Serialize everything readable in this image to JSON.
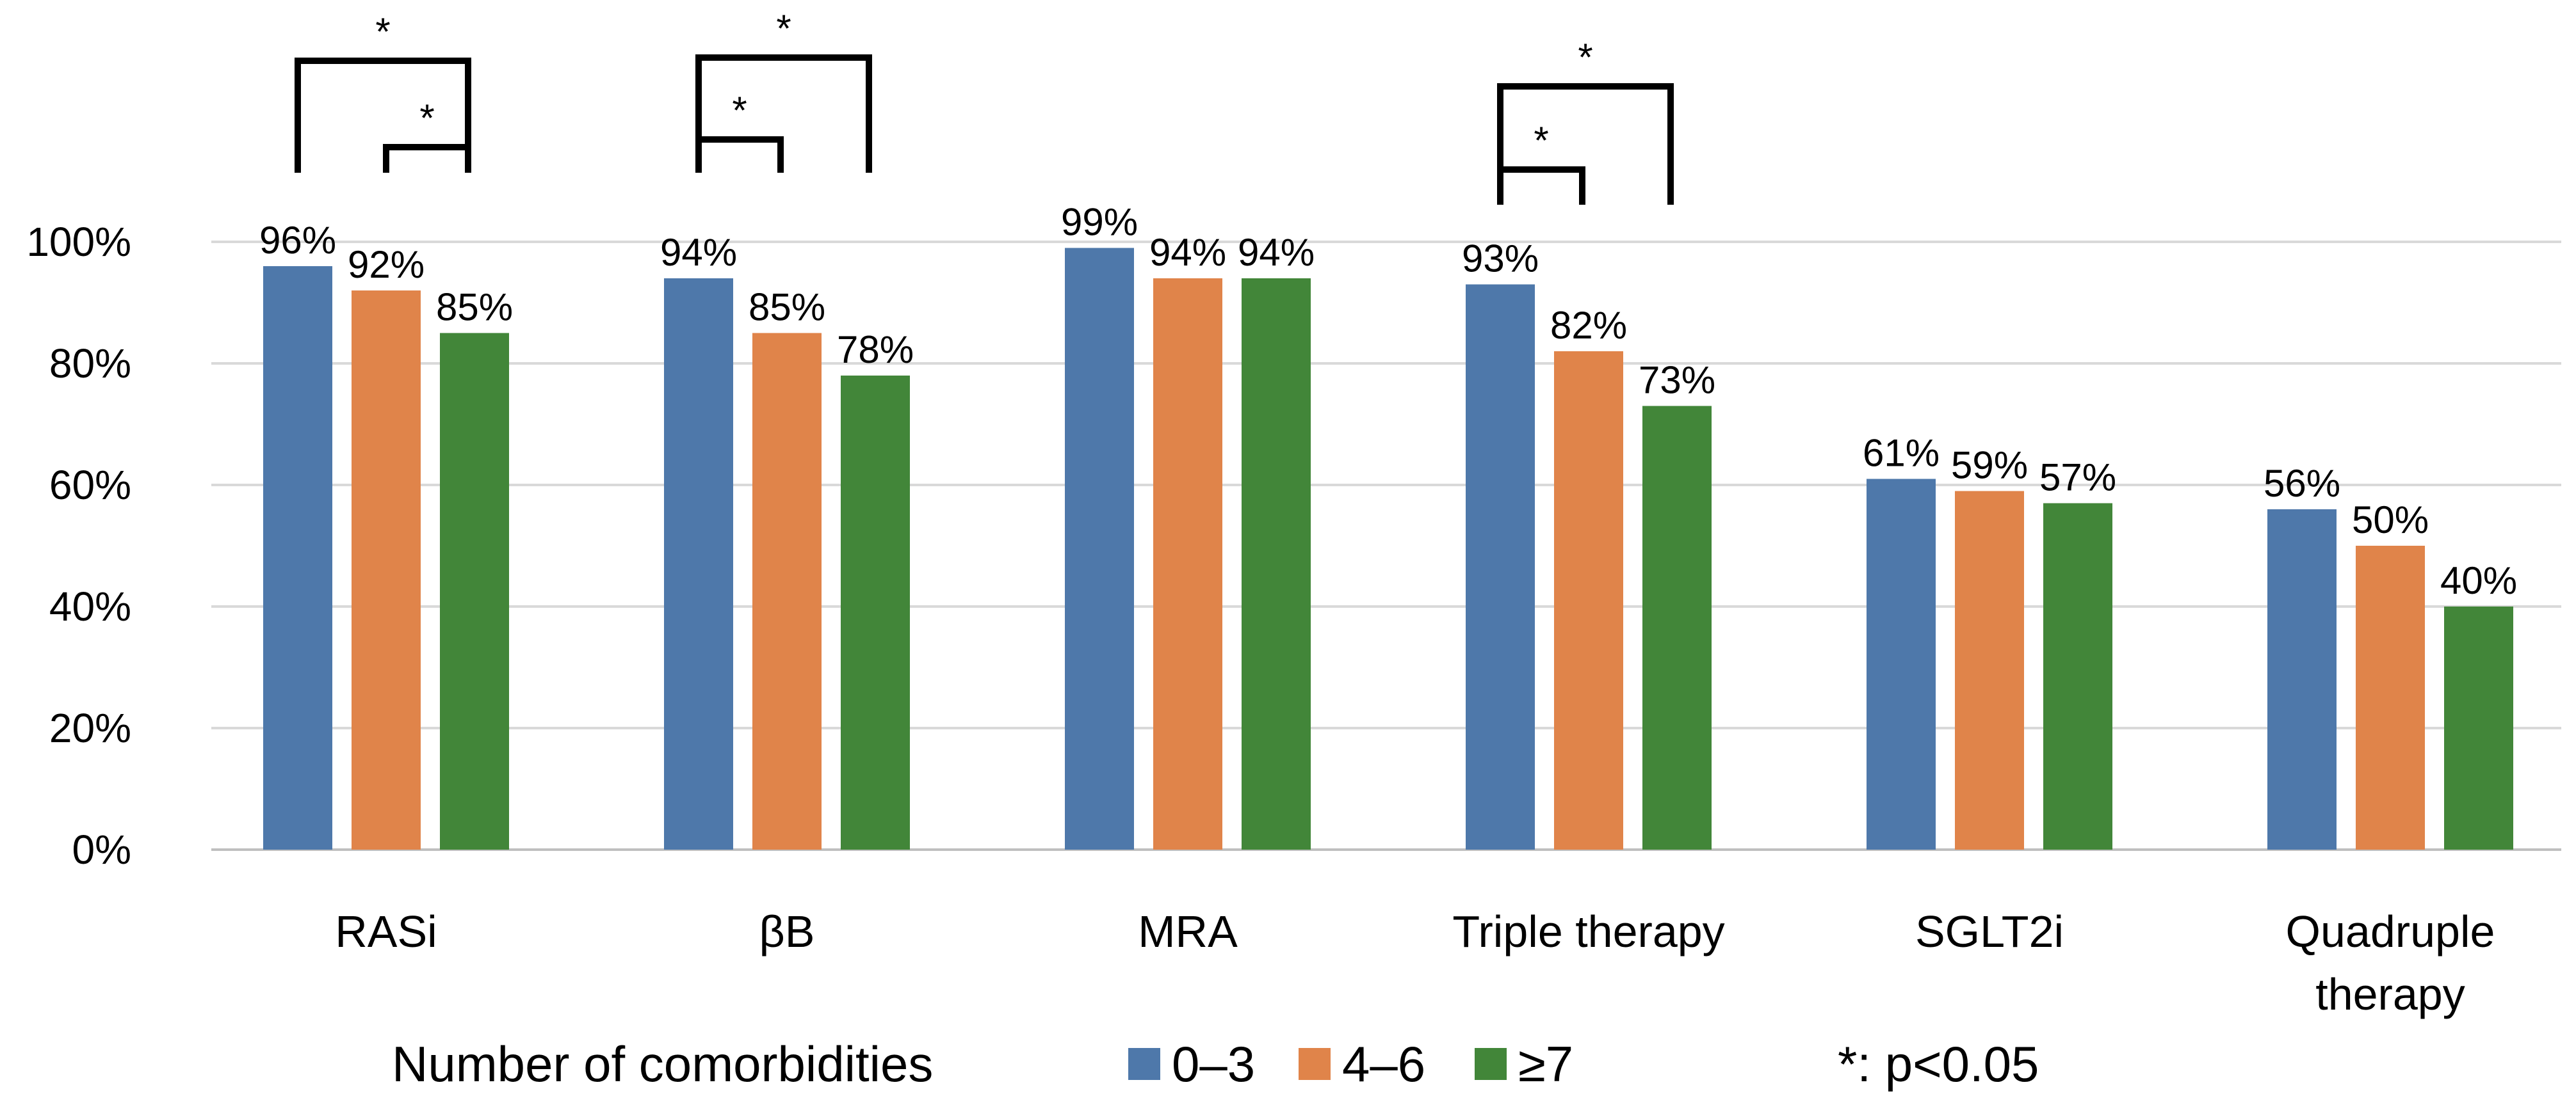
{
  "chart_data": {
    "type": "bar",
    "title": "",
    "xlabel": "",
    "ylabel": "",
    "ylim": [
      0,
      100
    ],
    "yticks": [
      "0%",
      "20%",
      "40%",
      "60%",
      "80%",
      "100%"
    ],
    "ytick_values": [
      0,
      20,
      40,
      60,
      80,
      100
    ],
    "grid": true,
    "categories": [
      [
        "RASi"
      ],
      [
        "βB"
      ],
      [
        "MRA"
      ],
      [
        "Triple therapy"
      ],
      [
        "SGLT2i"
      ],
      [
        "Quadruple",
        "therapy"
      ]
    ],
    "series": [
      {
        "name": "0–3",
        "color": "#4E78AA",
        "values": [
          96,
          94,
          99,
          93,
          61,
          56
        ],
        "labels": [
          "96%",
          "94%",
          "99%",
          "93%",
          "61%",
          "56%"
        ]
      },
      {
        "name": "4–6",
        "color": "#E0844A",
        "values": [
          92,
          85,
          94,
          82,
          59,
          50
        ],
        "labels": [
          "92%",
          "85%",
          "94%",
          "82%",
          "59%",
          "50%"
        ]
      },
      {
        "name": "≥7",
        "color": "#428639",
        "values": [
          85,
          78,
          94,
          73,
          57,
          40
        ],
        "labels": [
          "85%",
          "78%",
          "94%",
          "73%",
          "57%",
          "40%"
        ]
      }
    ],
    "legend": {
      "title": "Number of comorbidities",
      "placement": "bottom",
      "note": "*: p<0.05"
    },
    "significance": [
      {
        "category": 0,
        "from_series": 0,
        "to_series": 2,
        "label": "*"
      },
      {
        "category": 0,
        "from_series": 1,
        "to_series": 2,
        "label": "*"
      },
      {
        "category": 1,
        "from_series": 0,
        "to_series": 1,
        "label": "*"
      },
      {
        "category": 1,
        "from_series": 0,
        "to_series": 2,
        "label": "*"
      },
      {
        "category": 3,
        "from_series": 0,
        "to_series": 1,
        "label": "*"
      },
      {
        "category": 3,
        "from_series": 0,
        "to_series": 2,
        "label": "*"
      }
    ],
    "gridline_color": "#D9D9D9",
    "axis_color": "#BFBFBF"
  }
}
